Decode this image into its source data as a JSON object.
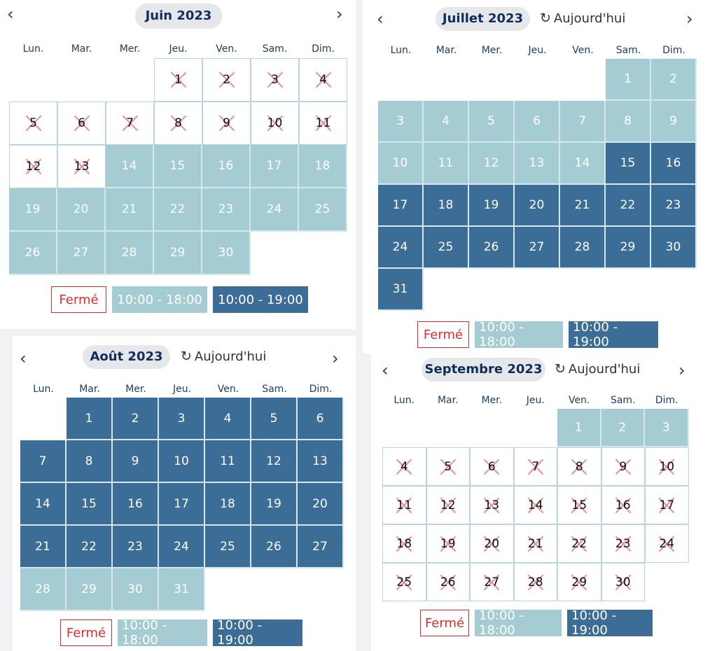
{
  "days_of_week": [
    "Lun.",
    "Mar.",
    "Mer.",
    "Jeu.",
    "Ven.",
    "Sam.",
    "Dim."
  ],
  "today_label": "Aujourd'hui",
  "nav_prev": "‹",
  "nav_next": "›",
  "legend": {
    "closed": "Fermé",
    "light": "10:00 - 18:00",
    "dark": "10:00 - 19:00"
  },
  "colors": {
    "light": "#a6ccd3",
    "dark": "#3c6d96",
    "closed_border": "#d92d2d",
    "cross": "#e89096",
    "title": "#0f2f5a"
  },
  "calendars": [
    {
      "title": "Juin 2023",
      "offset": 3,
      "days": 30,
      "closed": [
        1,
        2,
        3,
        4,
        5,
        6,
        7,
        8,
        9,
        10,
        11,
        12,
        13
      ],
      "dark": [],
      "show_today": false
    },
    {
      "title": "Juillet 2023",
      "offset": 5,
      "days": 31,
      "closed": [],
      "dark": [
        15,
        16,
        17,
        18,
        19,
        20,
        21,
        22,
        23,
        24,
        25,
        26,
        27,
        28,
        29,
        30,
        31
      ],
      "show_today": true
    },
    {
      "title": "Août 2023",
      "offset": 1,
      "days": 31,
      "closed": [],
      "dark": [
        1,
        2,
        3,
        4,
        5,
        6,
        7,
        8,
        9,
        10,
        11,
        12,
        13,
        14,
        15,
        16,
        17,
        18,
        19,
        20,
        21,
        22,
        23,
        24,
        25,
        26,
        27
      ],
      "show_today": true
    },
    {
      "title": "Septembre 2023",
      "offset": 4,
      "days": 30,
      "closed": [
        4,
        5,
        6,
        7,
        8,
        9,
        10,
        11,
        12,
        13,
        14,
        15,
        16,
        17,
        18,
        19,
        20,
        21,
        22,
        23,
        24,
        25,
        26,
        27,
        28,
        29,
        30
      ],
      "dark": [],
      "show_today": true
    }
  ]
}
